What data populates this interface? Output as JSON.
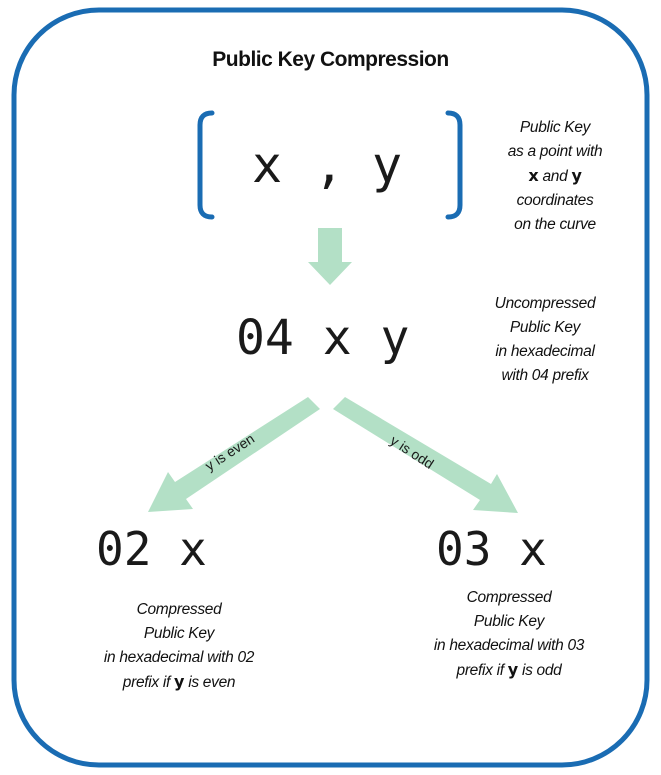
{
  "title": "Public Key Compression",
  "point": {
    "x": "x",
    "comma": ",",
    "y": "y"
  },
  "point_note": {
    "line1": "Public Key",
    "line2": "as a point with",
    "x_symbol": "x",
    "and": "and",
    "y_symbol": "y",
    "line4": "coordinates",
    "line5": "on the curve"
  },
  "uncompressed": {
    "value": "04 x y",
    "note": [
      "Uncompressed",
      "Public Key",
      "in hexadecimal",
      "with 04 prefix"
    ]
  },
  "branches": {
    "even_label": "y is even",
    "odd_label": "y is odd"
  },
  "compressed_even": {
    "value": "02 x",
    "note1": "Compressed",
    "note2": "Public Key",
    "note3": "in hexadecimal with 02",
    "note4_pre": "prefix if",
    "y_symbol": "y",
    "note4_post": "is even"
  },
  "compressed_odd": {
    "value": "03 x",
    "note1": "Compressed",
    "note2": "Public Key",
    "note3": "in hexadecimal with 03",
    "note4_pre": "prefix if",
    "y_symbol": "y",
    "note4_post": "is odd"
  },
  "colors": {
    "frame": "#1a6cb3",
    "bracket": "#1a6cb3",
    "arrow": "#b3e0c6"
  }
}
